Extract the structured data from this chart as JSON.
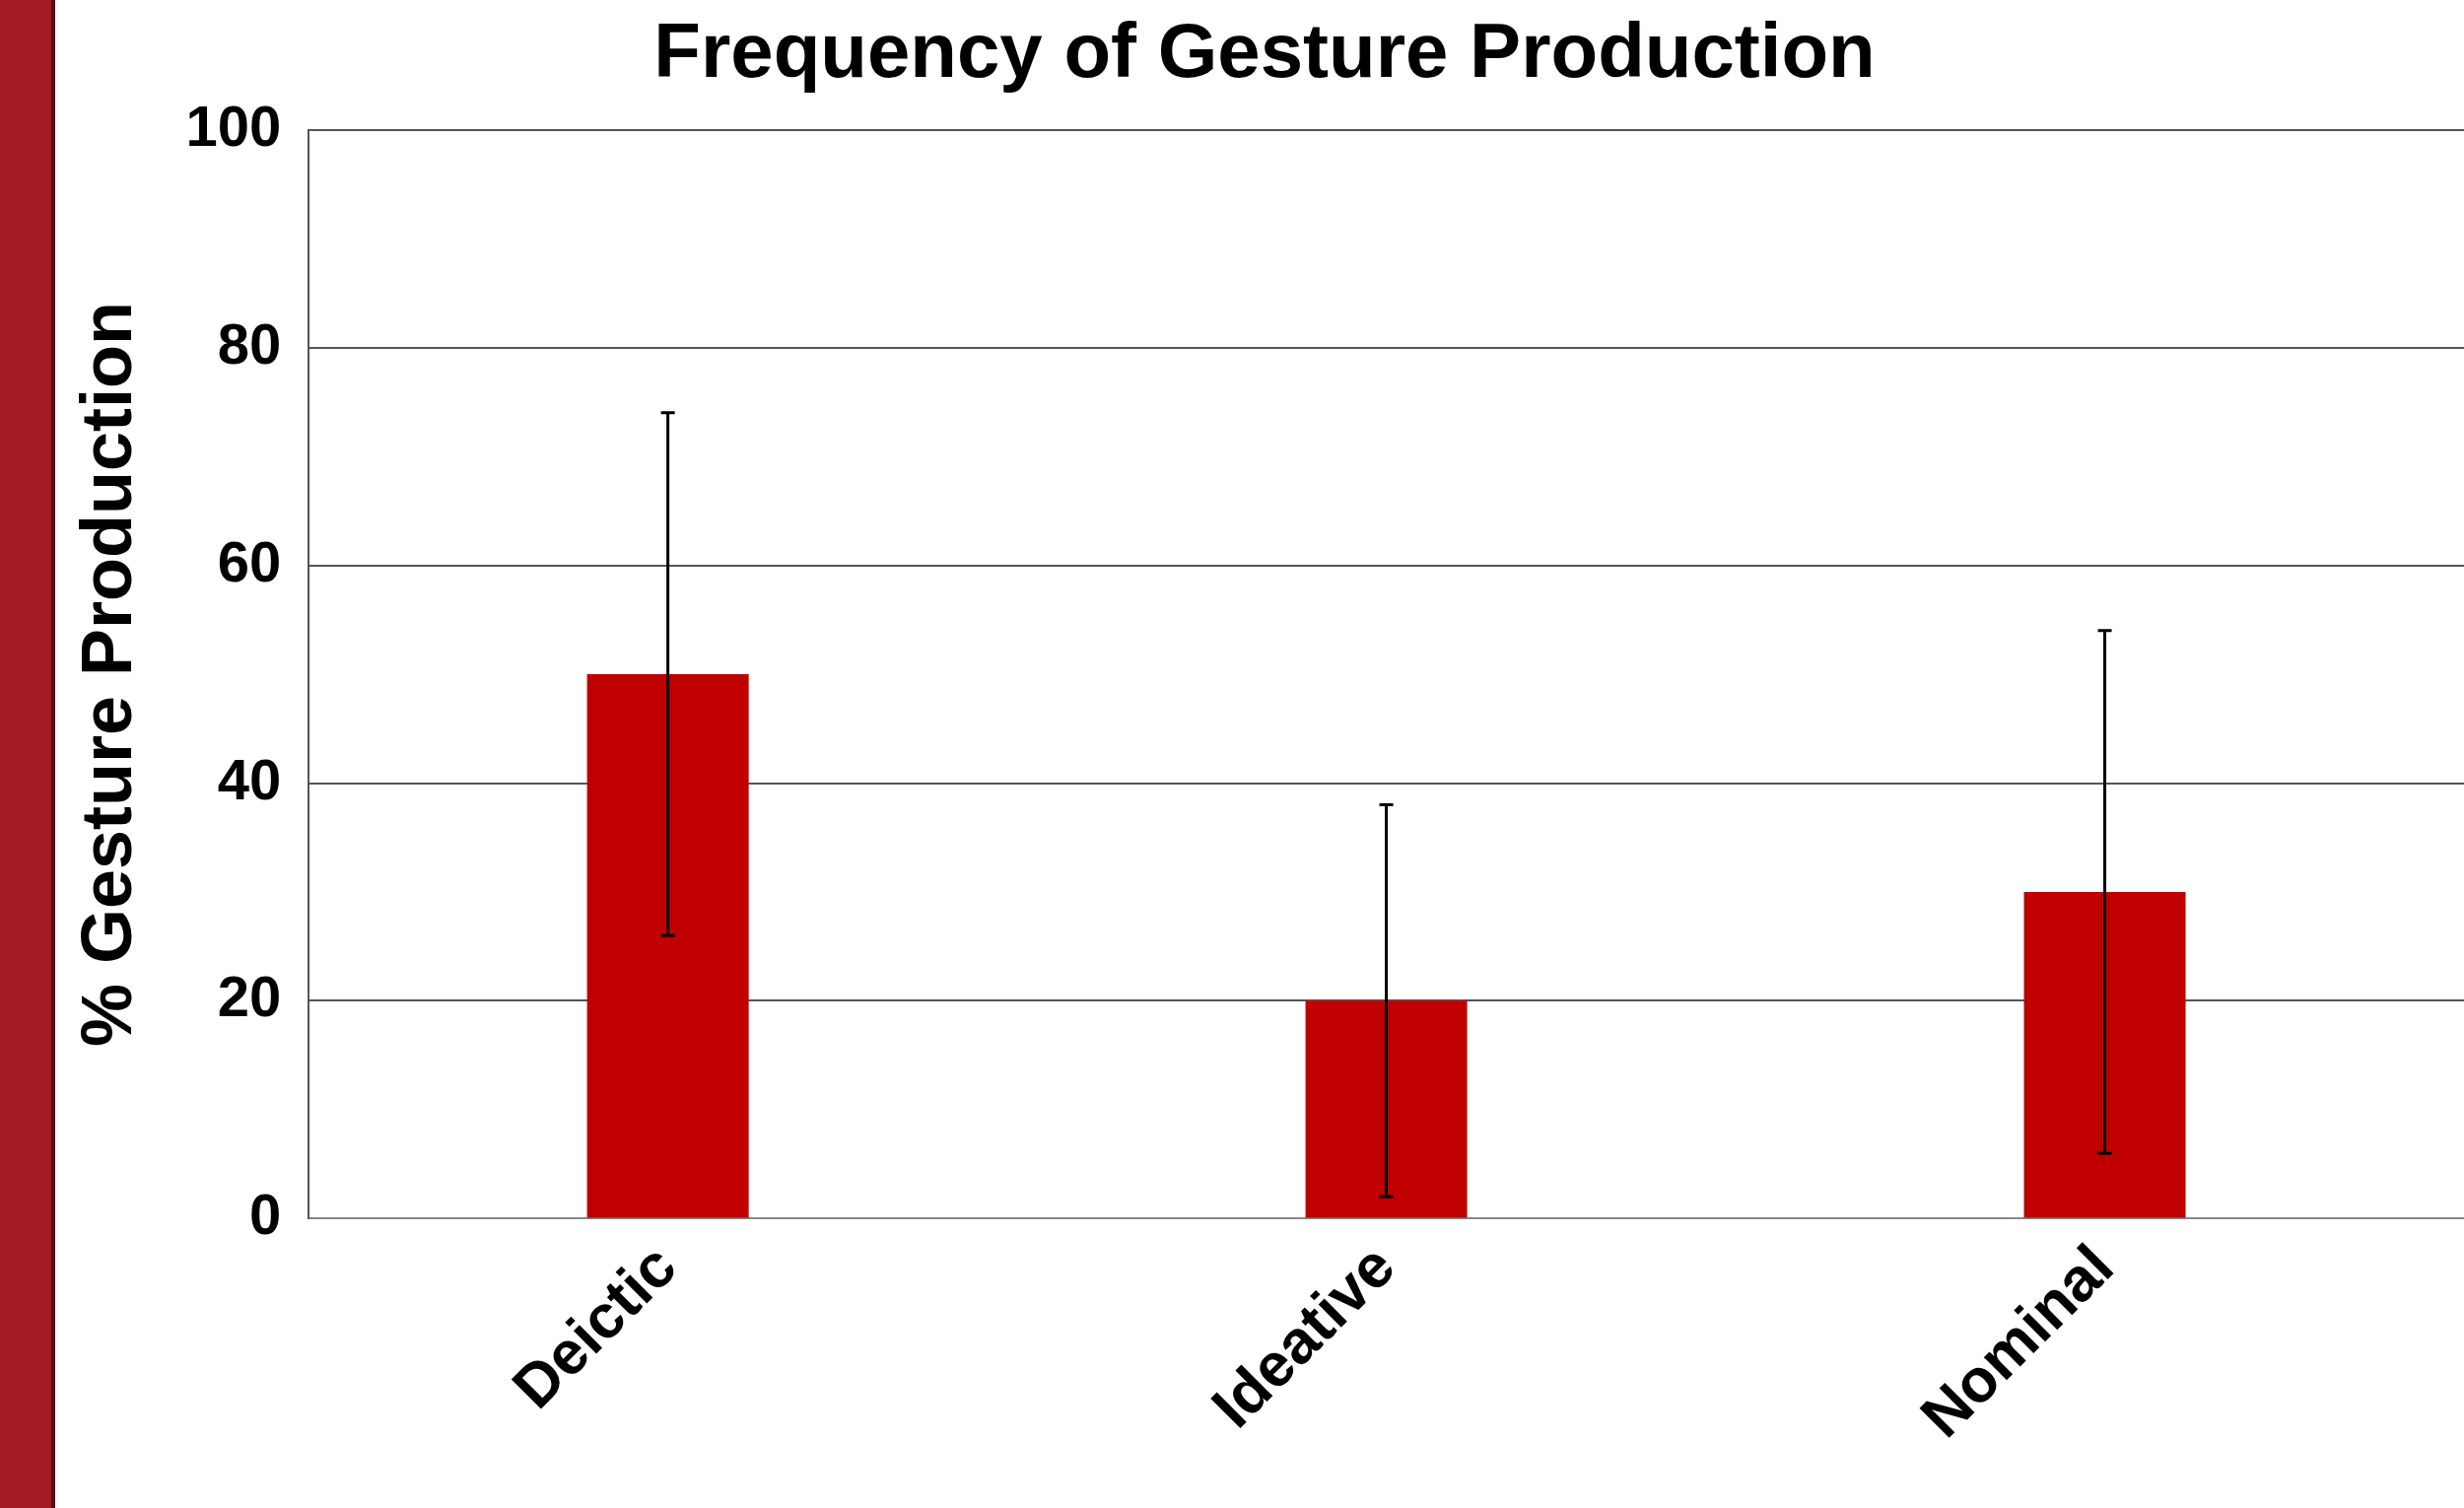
{
  "chart_data": {
    "type": "bar",
    "title": "Frequency of Gesture Production",
    "ylabel": "% Gesture Production",
    "categories": [
      "Deictic",
      "Ideative",
      "Nominal"
    ],
    "values": [
      50,
      20,
      30
    ],
    "color": "#c00000",
    "errors": [
      24,
      18,
      24
    ],
    "ylim": [
      0,
      100
    ],
    "yticks": [
      0,
      20,
      40,
      60,
      80,
      100
    ],
    "grid": "y",
    "legend": false
  }
}
